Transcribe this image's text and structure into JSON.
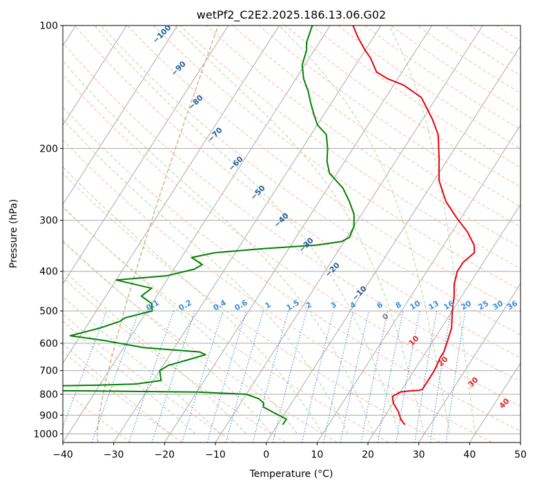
{
  "chart_data": {
    "type": "line",
    "subtype": "skew-t log-p diagram",
    "title": "wetPf2_C2E2.2025.186.13.06.G02",
    "xlabel": "Temperature (°C)",
    "ylabel": "Pressure (hPa)",
    "xlim": [
      -40,
      50
    ],
    "ylim": [
      1050,
      100
    ],
    "y_scale": "log",
    "x_ticks": [
      "−40",
      "−30",
      "−20",
      "−10",
      "0",
      "10",
      "20",
      "30",
      "40",
      "50"
    ],
    "y_ticks": [
      "100",
      "200",
      "300",
      "400",
      "500",
      "600",
      "700",
      "800",
      "900",
      "1000"
    ],
    "grid": true,
    "series": [
      {
        "color": "#e8000b",
        "points": [
          [
            25.0,
            950
          ],
          [
            23.5,
            920
          ],
          [
            22.0,
            880
          ],
          [
            20.0,
            840
          ],
          [
            19.0,
            810
          ],
          [
            20.0,
            790
          ],
          [
            21.5,
            785
          ],
          [
            23.5,
            782
          ],
          [
            24.0,
            778
          ],
          [
            24.0,
            760
          ],
          [
            24.0,
            700
          ],
          [
            23.5,
            650
          ],
          [
            23.5,
            630
          ],
          [
            23.0,
            600
          ],
          [
            22.0,
            550
          ],
          [
            20.0,
            500
          ],
          [
            18.5,
            460
          ],
          [
            17.0,
            430
          ],
          [
            16.0,
            400
          ],
          [
            16.0,
            380
          ],
          [
            17.0,
            360
          ],
          [
            16.0,
            345
          ],
          [
            13.0,
            320
          ],
          [
            9.0,
            295
          ],
          [
            5.0,
            270
          ],
          [
            1.0,
            240
          ],
          [
            -2.0,
            210
          ],
          [
            -5.0,
            185
          ],
          [
            -8.0,
            170
          ],
          [
            -13.0,
            150
          ],
          [
            -18.0,
            140
          ],
          [
            -22.0,
            135
          ],
          [
            -25.0,
            130
          ],
          [
            -28.0,
            120
          ],
          [
            -30.0,
            115
          ],
          [
            -33.0,
            107
          ],
          [
            -35.5,
            100
          ]
        ]
      },
      {
        "color": "#008000",
        "points": [
          [
            1.0,
            950
          ],
          [
            1.0,
            920
          ],
          [
            -2.0,
            890
          ],
          [
            -5.0,
            860
          ],
          [
            -5.5,
            840
          ],
          [
            -7.0,
            820
          ],
          [
            -10.0,
            800
          ],
          [
            -20.0,
            790
          ],
          [
            -40.0,
            785
          ],
          [
            -70.0,
            780
          ],
          [
            -70.0,
            770
          ],
          [
            -40.0,
            760
          ],
          [
            -33.0,
            755
          ],
          [
            -30.0,
            745
          ],
          [
            -28.5,
            740
          ],
          [
            -30.0,
            700
          ],
          [
            -29.0,
            680
          ],
          [
            -26.0,
            660
          ],
          [
            -23.0,
            640
          ],
          [
            -24.5,
            630
          ],
          [
            -36.0,
            615
          ],
          [
            -45.0,
            590
          ],
          [
            -52.0,
            575
          ],
          [
            -47.0,
            550
          ],
          [
            -44.0,
            530
          ],
          [
            -43.5,
            520
          ],
          [
            -39.0,
            500
          ],
          [
            -40.0,
            480
          ],
          [
            -43.0,
            460
          ],
          [
            -42.0,
            440
          ],
          [
            -50.0,
            420
          ],
          [
            -40.5,
            410
          ],
          [
            -36.0,
            395
          ],
          [
            -35.0,
            385
          ],
          [
            -38.0,
            370
          ],
          [
            -34.0,
            360
          ],
          [
            -25.0,
            352
          ],
          [
            -15.0,
            345
          ],
          [
            -10.5,
            338
          ],
          [
            -9.5,
            330
          ],
          [
            -10.0,
            310
          ],
          [
            -11.5,
            290
          ],
          [
            -14.0,
            270
          ],
          [
            -17.0,
            250
          ],
          [
            -21.5,
            230
          ],
          [
            -23.5,
            215
          ],
          [
            -25.0,
            200
          ],
          [
            -27.0,
            185
          ],
          [
            -30.0,
            175
          ],
          [
            -32.0,
            165
          ],
          [
            -34.0,
            155
          ],
          [
            -36.0,
            145
          ],
          [
            -38.5,
            135
          ],
          [
            -40.5,
            125
          ],
          [
            -41.0,
            120
          ],
          [
            -41.5,
            115
          ],
          [
            -42.5,
            110
          ],
          [
            -43.0,
            105
          ],
          [
            -43.5,
            100
          ]
        ]
      }
    ],
    "dry_adiabat_labels": [
      "−100",
      "−90",
      "−80",
      "−70",
      "−60",
      "−50",
      "−40",
      "−30",
      "−20",
      "−10",
      "0",
      "10",
      "20",
      "30",
      "40"
    ],
    "mixing_ratio_labels": [
      "0.1",
      "0.2",
      "0.4",
      "0.6",
      "1",
      "1.5",
      "2",
      "3",
      "4",
      "6",
      "8",
      "10",
      "13",
      "16",
      "20",
      "25",
      "30",
      "36"
    ],
    "colors": {
      "temperature": "#e8000b",
      "dewpoint": "#008000",
      "isotherm": "#a9a9a9",
      "isobar": "#a9a9a9",
      "dry_adiabat": "#ffb59e",
      "moist_adiabat": "#a9d8a0",
      "mixing_ratio": "#1f78e0",
      "dry_adiabat_label_cold": "#1f5f9a",
      "dry_adiabat_label_zero": "#808080",
      "dry_adiabat_label_warm": "#d62728",
      "mixing_label": "#3d8fe0",
      "tan_curve": "#d2b48c"
    }
  }
}
